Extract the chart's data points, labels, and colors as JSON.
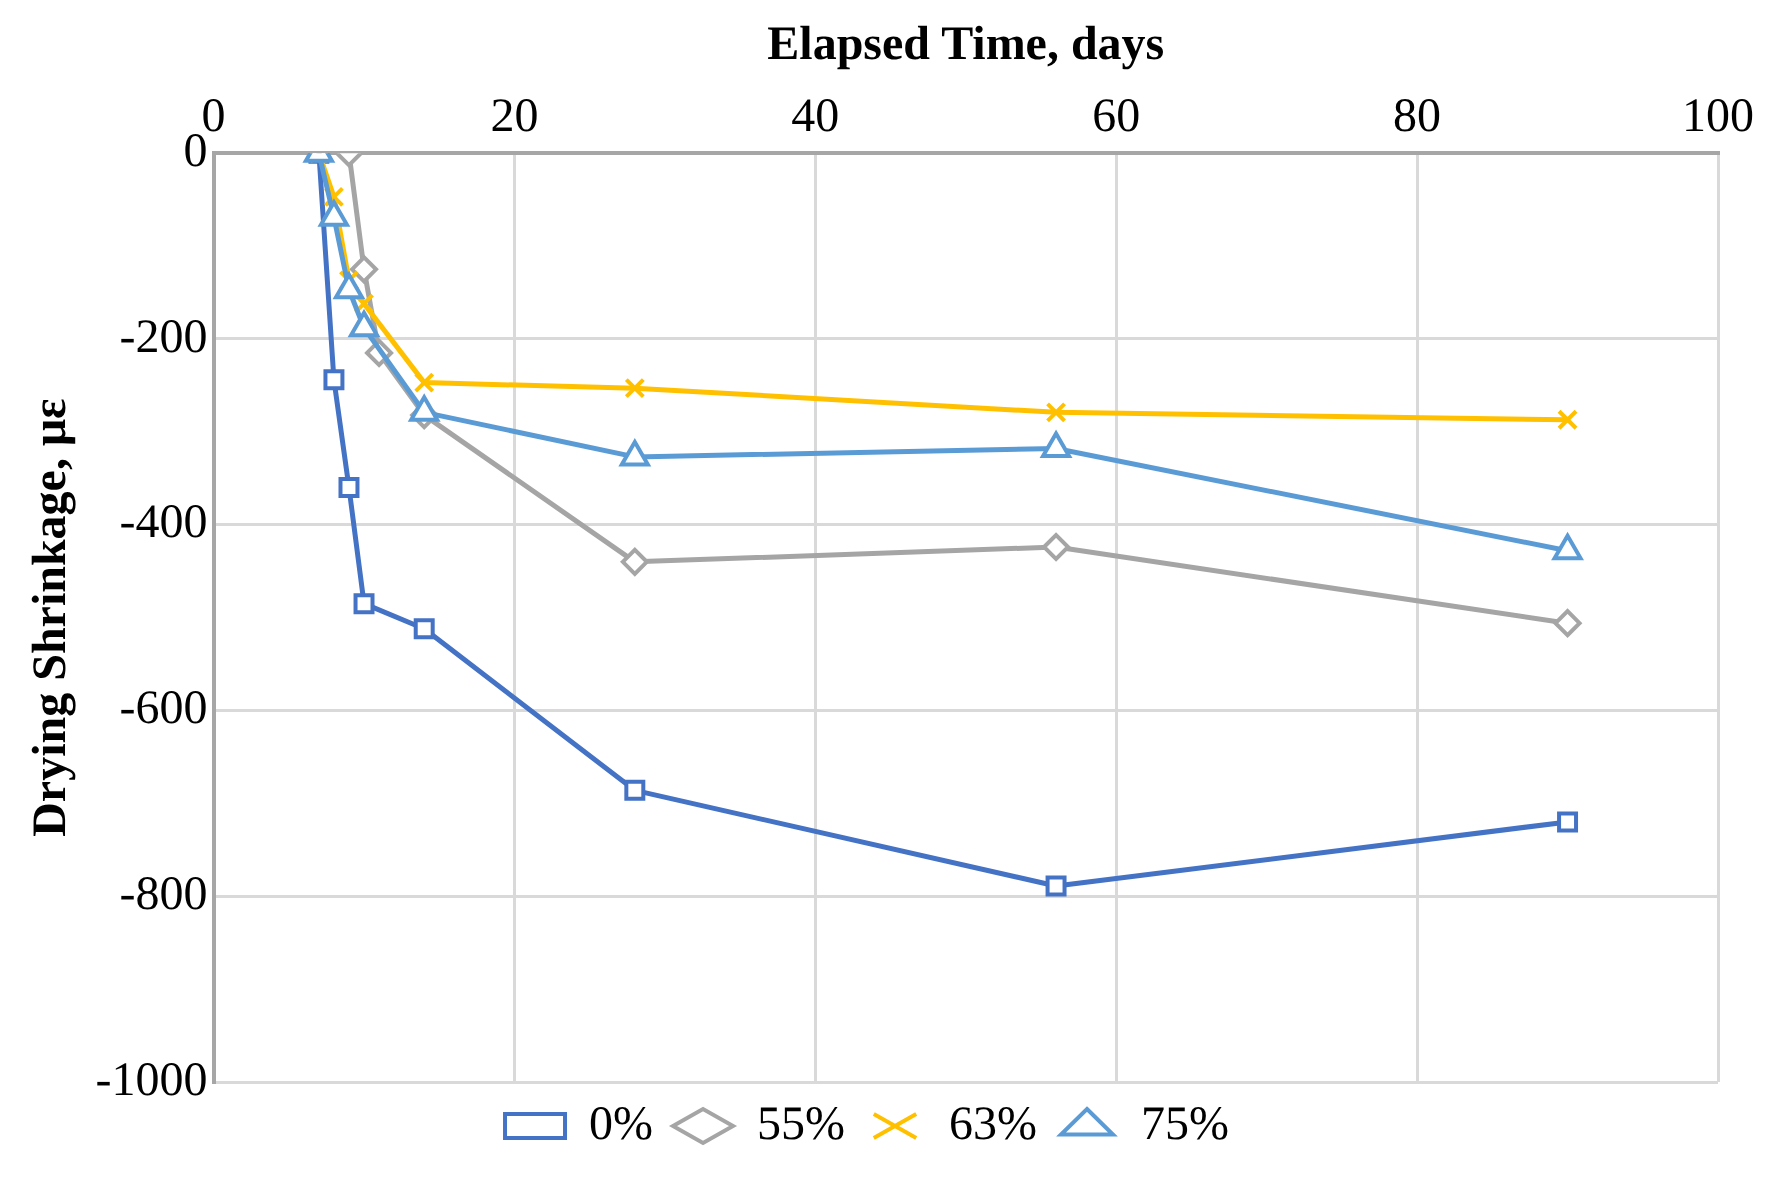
{
  "chart_data": {
    "type": "line",
    "xlabel": "Elapsed Time, days",
    "ylabel": "Drying Shrinkage, με",
    "xlim": [
      0,
      100
    ],
    "xticks": [
      0,
      20,
      40,
      60,
      80,
      100
    ],
    "ylim": [
      -1000,
      0
    ],
    "yticks": [
      -1000,
      -800,
      -600,
      -400,
      -200,
      0
    ],
    "grid": true,
    "legend": "bottom",
    "line_style": "solid",
    "series": [
      {
        "name": "0%",
        "color": "#4472c4",
        "marker": "square",
        "x": [
          7,
          8,
          9,
          10,
          14,
          28,
          56,
          90
        ],
        "values": [
          0,
          -244,
          -360,
          -485,
          -512,
          -686,
          -789,
          -720
        ]
      },
      {
        "name": "55%",
        "color": "#a5a5a5",
        "marker": "diamond",
        "x": [
          9,
          10,
          11,
          14,
          28,
          56,
          90
        ],
        "values": [
          0,
          -125,
          -215,
          -282,
          -440,
          -424,
          -506
        ]
      },
      {
        "name": "63%",
        "color": "#ffc000",
        "marker": "cross",
        "x": [
          7,
          8,
          9,
          10,
          14,
          28,
          56,
          90
        ],
        "values": [
          0,
          -47,
          -137,
          -162,
          -247,
          -253,
          -279,
          -287
        ]
      },
      {
        "name": "75%",
        "color": "#5b9bd5",
        "marker": "triangle",
        "x": [
          7,
          8,
          9,
          10,
          14,
          28,
          56,
          90
        ],
        "values": [
          0,
          -69,
          -147,
          -188,
          -279,
          -327,
          -318,
          -428
        ]
      }
    ]
  }
}
